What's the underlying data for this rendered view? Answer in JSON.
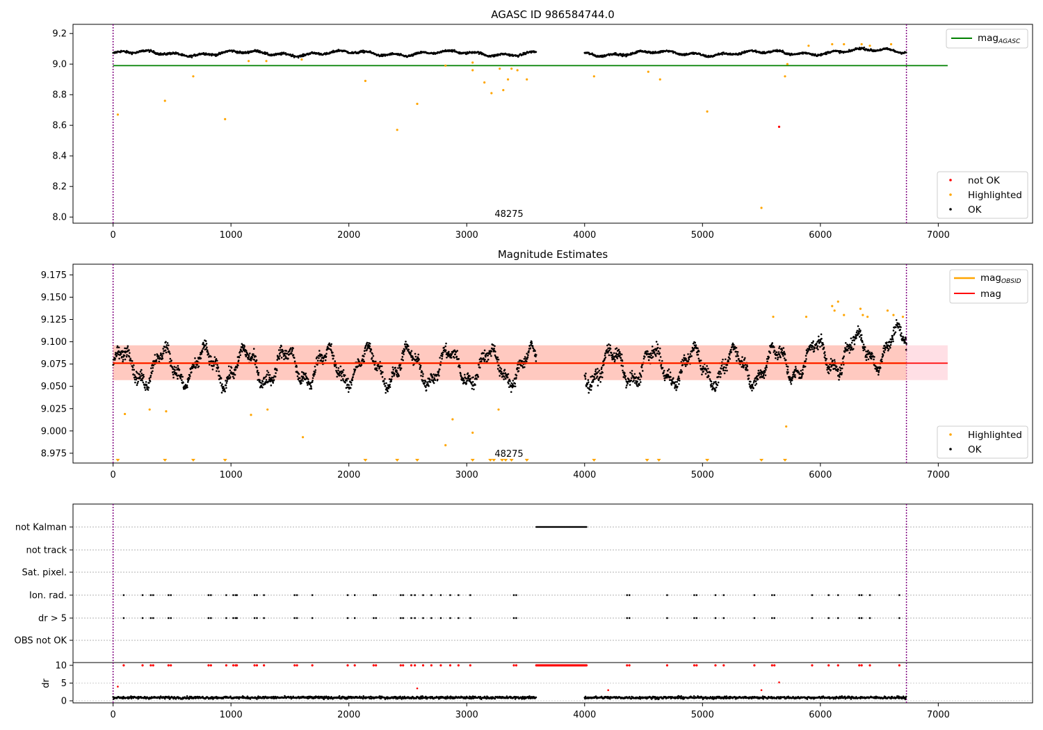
{
  "chart_data": [
    {
      "type": "scatter",
      "title": "AGASC ID 986584744.0",
      "x_ticks": [
        "0",
        "1000",
        "2000",
        "3000",
        "4000",
        "5000",
        "6000",
        "7000"
      ],
      "xlim": [
        -340,
        7800
      ],
      "y_ticks": [
        "8.0",
        "8.2",
        "8.4",
        "8.6",
        "8.8",
        "9.0",
        "9.2"
      ],
      "ylim": [
        7.96,
        9.26
      ],
      "annotation": "48275",
      "annotation_x": 3370,
      "vlines_x": [
        0,
        6730
      ],
      "hline": {
        "name": "mag",
        "subscript": "AGASC",
        "y": 8.99,
        "x_end": 7080,
        "color": "#008000"
      },
      "series": [
        {
          "name": "not OK",
          "color": "#ff0000"
        },
        {
          "name": "Highlighted",
          "color": "#ffa500"
        },
        {
          "name": "OK",
          "color": "#000000"
        }
      ],
      "ok_segments": [
        {
          "x0": 0,
          "x1": 3590
        },
        {
          "x0": 4000,
          "x1": 6730
        }
      ],
      "ok_level": 9.07,
      "highlighted_points": [
        [
          40,
          8.67
        ],
        [
          440,
          8.76
        ],
        [
          680,
          8.92
        ],
        [
          950,
          8.64
        ],
        [
          2140,
          8.89
        ],
        [
          2410,
          8.57
        ],
        [
          2580,
          8.74
        ],
        [
          2820,
          8.99
        ],
        [
          3050,
          8.96
        ],
        [
          3150,
          8.88
        ],
        [
          3210,
          8.81
        ],
        [
          3280,
          8.97
        ],
        [
          3310,
          8.83
        ],
        [
          3350,
          8.9
        ],
        [
          3380,
          8.97
        ],
        [
          3430,
          8.96
        ],
        [
          3510,
          8.9
        ],
        [
          4080,
          8.92
        ],
        [
          4540,
          8.95
        ],
        [
          4640,
          8.9
        ],
        [
          5040,
          8.69
        ],
        [
          5500,
          8.06
        ],
        [
          5700,
          8.92
        ],
        [
          5720,
          9.0
        ],
        [
          1150,
          9.02
        ],
        [
          1300,
          9.02
        ],
        [
          1600,
          9.03
        ],
        [
          3050,
          9.01
        ],
        [
          5900,
          9.12
        ],
        [
          6100,
          9.13
        ],
        [
          6200,
          9.13
        ],
        [
          6350,
          9.13
        ],
        [
          6420,
          9.12
        ],
        [
          6600,
          9.13
        ]
      ],
      "not_ok_points": [
        [
          5650,
          8.59
        ]
      ],
      "legend_items": [
        "not OK",
        "Highlighted",
        "OK"
      ]
    },
    {
      "type": "scatter",
      "title": "Magnitude Estimates",
      "x_ticks": [
        "0",
        "1000",
        "2000",
        "3000",
        "4000",
        "5000",
        "6000",
        "7000"
      ],
      "xlim": [
        -340,
        7800
      ],
      "y_ticks": [
        "8.975",
        "9.000",
        "9.025",
        "9.050",
        "9.075",
        "9.100",
        "9.125",
        "9.150",
        "9.175"
      ],
      "ylim": [
        8.964,
        9.187
      ],
      "annotation": "48275",
      "annotation_x": 3370,
      "vlines_x": [
        0,
        6730
      ],
      "mag_line": {
        "name": "mag",
        "y": 9.076,
        "band": [
          9.057,
          9.096
        ],
        "x_end": 7080,
        "color": "#ff0000"
      },
      "obsid_line": {
        "name": "mag",
        "subscript": "OBSID",
        "y": 9.076,
        "x_end": 6730,
        "color": "#ffa500"
      },
      "highlighted_points": [
        [
          100,
          9.019
        ],
        [
          310,
          9.024
        ],
        [
          450,
          9.022
        ],
        [
          1170,
          9.018
        ],
        [
          1310,
          9.024
        ],
        [
          1610,
          8.993
        ],
        [
          2820,
          8.984
        ],
        [
          2880,
          9.013
        ],
        [
          3050,
          8.998
        ],
        [
          3270,
          9.024
        ],
        [
          5710,
          9.005
        ],
        [
          5600,
          9.128
        ],
        [
          5880,
          9.128
        ],
        [
          6100,
          9.14
        ],
        [
          6120,
          9.135
        ],
        [
          6150,
          9.145
        ],
        [
          6200,
          9.13
        ],
        [
          6340,
          9.137
        ],
        [
          6360,
          9.13
        ],
        [
          6400,
          9.128
        ],
        [
          6570,
          9.135
        ],
        [
          6620,
          9.13
        ],
        [
          6700,
          9.128
        ]
      ],
      "low_markers_x": [
        40,
        440,
        680,
        950,
        2140,
        2410,
        2580,
        3050,
        3200,
        3230,
        3300,
        3330,
        3380,
        3510,
        4080,
        4530,
        4630,
        5040,
        5500,
        5700
      ],
      "ok_points_note": "",
      "legend_items": [
        "Highlighted",
        "OK"
      ],
      "legend_line_items": [
        "mag",
        "mag"
      ]
    },
    {
      "type": "scatter",
      "x_ticks": [
        "0",
        "1000",
        "2000",
        "3000",
        "4000",
        "5000",
        "6000",
        "7000"
      ],
      "xlim": [
        -340,
        7800
      ],
      "vlines_x": [
        0,
        6730
      ],
      "flag_rows": [
        "not Kalman",
        "not track",
        "Sat. pixel.",
        "Ion. rad.",
        "dr > 5",
        "OBS not OK"
      ],
      "not_kalman_range": [
        3590,
        4020
      ],
      "ion_rad_x": [
        90,
        250,
        320,
        340,
        470,
        490,
        810,
        830,
        960,
        1020,
        1040,
        1050,
        1200,
        1220,
        1280,
        1540,
        1560,
        1690,
        1990,
        2050,
        2210,
        2230,
        2440,
        2460,
        2530,
        2560,
        2630,
        2700,
        2780,
        2860,
        2930,
        3030,
        3400,
        3420,
        4360,
        4380,
        4700,
        4930,
        4950,
        5110,
        5180,
        5440,
        5590,
        5610,
        5930,
        6070,
        6150,
        6330,
        6350,
        6420,
        6670
      ],
      "dr_ylabel": "dr",
      "dr_y_ticks": [
        "0",
        "5",
        "10"
      ],
      "dr_ylim": [
        -0.5,
        10.5
      ],
      "dr_red_x": [
        90,
        250,
        320,
        340,
        470,
        490,
        810,
        830,
        960,
        1020,
        1040,
        1050,
        1200,
        1220,
        1280,
        1540,
        1560,
        1690,
        1990,
        2050,
        2210,
        2230,
        2440,
        2460,
        2530,
        2560,
        2630,
        2700,
        2780,
        2860,
        2930,
        3030,
        3400,
        3420,
        4360,
        4380,
        4700,
        4930,
        4950,
        5110,
        5180,
        5440,
        5590,
        5610,
        5930,
        6070,
        6150,
        6330,
        6350,
        6420,
        6670
      ],
      "dr_red_low": [
        [
          40,
          4
        ],
        [
          2580,
          3.5
        ],
        [
          4200,
          3
        ],
        [
          5500,
          3
        ],
        [
          5650,
          5.2
        ]
      ],
      "dr_segments": [
        {
          "x0": 0,
          "x1": 3590
        },
        {
          "x0": 4000,
          "x1": 6730
        }
      ]
    }
  ]
}
